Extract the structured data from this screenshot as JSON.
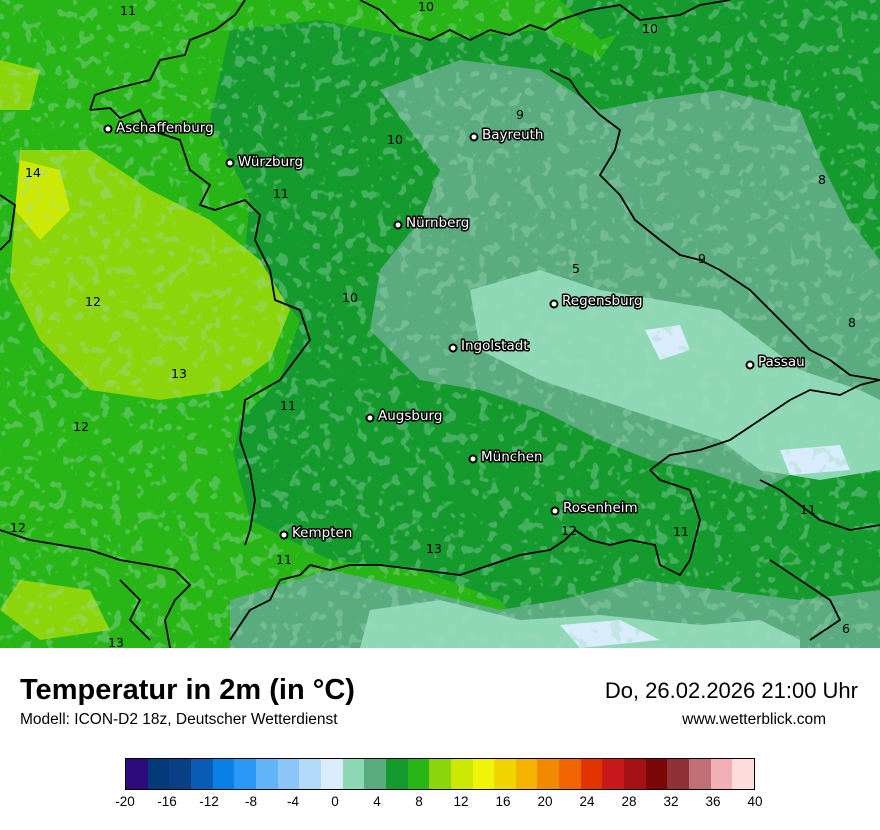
{
  "title": "Temperatur in 2m (in °C)",
  "model": "Modell: ICON-D2 18z, Deutscher Wetterdienst",
  "datetime": "Do, 26.02.2026 21:00 Uhr",
  "website": "www.wetterblick.com",
  "cities": [
    "Aschaffenburg",
    "Würzburg",
    "Bayreuth",
    "Nürnberg",
    "Regensburg",
    "Ingolstadt",
    "Passau",
    "Augsburg",
    "München",
    "Rosenheim",
    "Kempten"
  ],
  "contour_labels": [
    "11",
    "10",
    "10",
    "9",
    "10",
    "14",
    "11",
    "8",
    "9",
    "5",
    "12",
    "10",
    "8",
    "13",
    "11",
    "12",
    "12",
    "11",
    "13",
    "12",
    "11",
    "11",
    "13",
    "6"
  ],
  "legend": {
    "colors": [
      "#2e0b7c",
      "#053a7a",
      "#0a3f86",
      "#0a5bb5",
      "#0a7fe6",
      "#2b98f5",
      "#63b3f8",
      "#8cc6f9",
      "#b3daf9",
      "#d8ecfb",
      "#8fd8b6",
      "#5aab7e",
      "#159a2e",
      "#27b615",
      "#8bd50a",
      "#cbe904",
      "#f0f507",
      "#f1d400",
      "#f3b300",
      "#f28a00",
      "#f06500",
      "#e33300",
      "#c8181a",
      "#a61115",
      "#7a0606",
      "#8e3236",
      "#c06f74",
      "#f3b0b4",
      "#ffdcdc"
    ],
    "ticks": [
      "-20",
      "-16",
      "-12",
      "-8",
      "-4",
      "0",
      "4",
      "8",
      "12",
      "16",
      "20",
      "24",
      "28",
      "32",
      "36",
      "40"
    ]
  }
}
